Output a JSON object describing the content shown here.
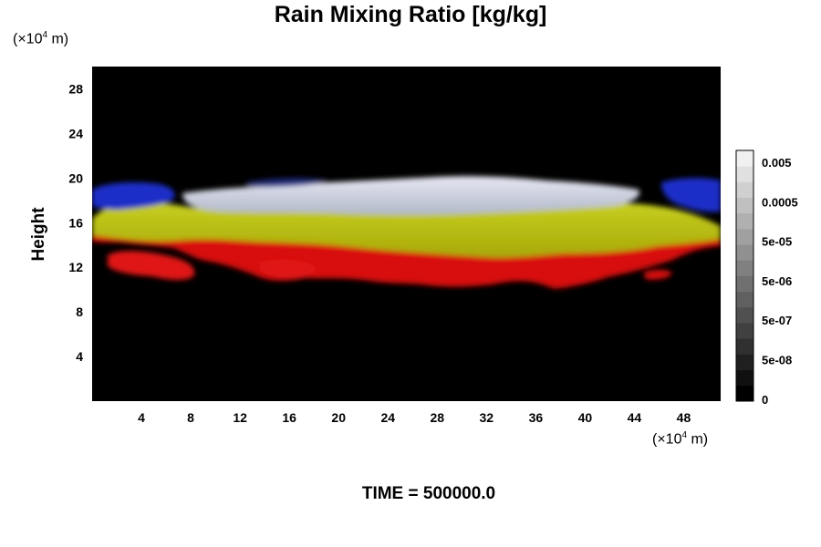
{
  "chart_data": {
    "type": "heatmap",
    "title": "Rain Mixing Ratio [kg/kg]",
    "ylabel": "Height",
    "xlabel": "",
    "x_unit_prefix": "(×10",
    "x_unit_exp": "4",
    "x_unit_suffix": " m)",
    "y_unit_prefix": "(×10",
    "y_unit_exp": "4",
    "y_unit_suffix": " m)",
    "x_ticks": [
      4,
      8,
      12,
      16,
      20,
      24,
      28,
      32,
      36,
      40,
      44,
      48
    ],
    "y_ticks": [
      4,
      8,
      12,
      16,
      20,
      24,
      28
    ],
    "xlim": [
      0,
      51
    ],
    "ylim": [
      0,
      30
    ],
    "background_color": "#000000",
    "regions": [
      {
        "label": "red",
        "color": "#e01010",
        "y_range": [
          10.5,
          14.5
        ],
        "x_extent": [
          0,
          51
        ]
      },
      {
        "label": "yellow",
        "color": "#b8c010",
        "y_range": [
          13.5,
          17.5
        ],
        "x_extent": [
          0,
          51
        ]
      },
      {
        "label": "white",
        "color": "#d4d4e6",
        "y_range": [
          17,
          19.8
        ],
        "x_extent": [
          9,
          46
        ]
      },
      {
        "label": "blue",
        "color": "#1a2ec8",
        "y_range": [
          16.5,
          19.5
        ],
        "x_extent": [
          0,
          51
        ]
      }
    ],
    "colorbar": {
      "labels": [
        "0.005",
        "0.0005",
        "5e-05",
        "5e-06",
        "5e-07",
        "5e-08",
        "0"
      ],
      "levels": 16,
      "colors": [
        "#000000",
        "#f0f0f0"
      ]
    }
  },
  "footer": "TIME = 500000.0"
}
